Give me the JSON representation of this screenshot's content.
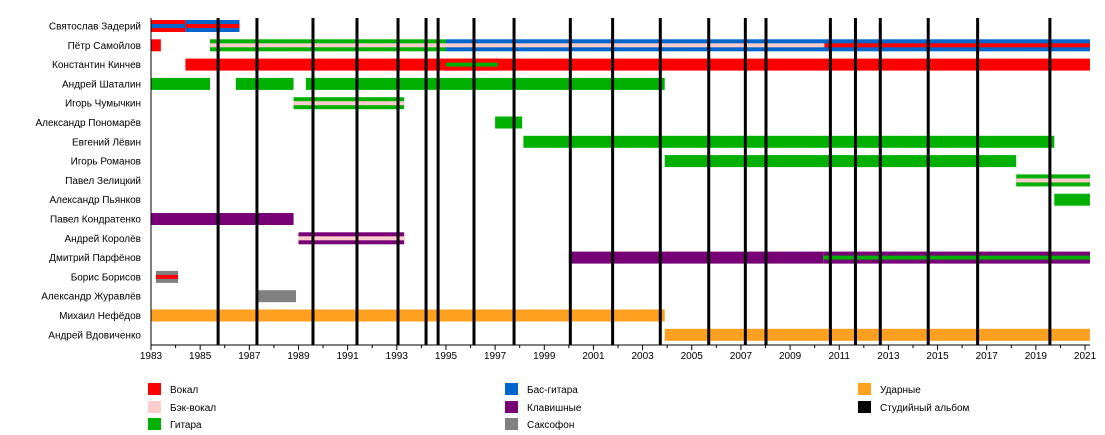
{
  "chart_data": {
    "type": "timeline",
    "title": "",
    "xlabel": "",
    "ylabel": "",
    "xlim": [
      1983,
      2021.2
    ],
    "x_tick_labels": [
      "1983",
      "1985",
      "1987",
      "1989",
      "1991",
      "1993",
      "1995",
      "1997",
      "1999",
      "2001",
      "2003",
      "2005",
      "2007",
      "2009",
      "2011",
      "2013",
      "2015",
      "2017",
      "2019",
      "2021"
    ],
    "grid": false,
    "legend_position": "bottom",
    "roles": {
      "vocal": {
        "label": "Вокал",
        "color": "#ff0000"
      },
      "backing": {
        "label": "Бэк-вокал",
        "color": "#ffcccc"
      },
      "guitar": {
        "label": "Гитара",
        "color": "#00b000"
      },
      "bass": {
        "label": "Бас-гитара",
        "color": "#0066cc"
      },
      "keys": {
        "label": "Клавишные",
        "color": "#770077"
      },
      "sax": {
        "label": "Саксофон",
        "color": "#808080"
      },
      "drums": {
        "label": "Ударные",
        "color": "#ffa020"
      },
      "album": {
        "label": "Студийный альбом",
        "color": "#000000"
      }
    },
    "legend_order": [
      [
        "vocal",
        "backing",
        "guitar"
      ],
      [
        "bass",
        "keys",
        "sax"
      ],
      [
        "drums",
        "album"
      ]
    ],
    "albums": [
      1985.73,
      1987.31,
      1989.59,
      1991.38,
      1993.05,
      1994.19,
      1994.68,
      1996.14,
      1997.77,
      2000.06,
      2001.78,
      2003.72,
      2005.69,
      2007.18,
      2008.02,
      2010.64,
      2011.66,
      2012.67,
      2014.62,
      2016.63,
      2019.57
    ],
    "members": [
      {
        "name": "Святослав Задерий",
        "spans": [
          {
            "from": 1983,
            "to": 1984.4,
            "role": "vocal",
            "inner": "bass"
          },
          {
            "from": 1984.4,
            "to": 1986.6,
            "role": "bass",
            "inner": "vocal"
          }
        ]
      },
      {
        "name": "Пётр Самойлов",
        "spans": [
          {
            "from": 1983,
            "to": 1983.4,
            "role": "vocal"
          },
          {
            "from": 1985.4,
            "to": 1995.0,
            "role": "guitar",
            "inner": "backing"
          },
          {
            "from": 1995.0,
            "to": 2010.4,
            "role": "bass",
            "inner": "backing"
          },
          {
            "from": 2010.4,
            "to": 2021.2,
            "role": "bass",
            "inner": "vocal"
          }
        ]
      },
      {
        "name": "Константин Кинчев",
        "spans": [
          {
            "from": 1984.4,
            "to": 2021.2,
            "role": "vocal"
          },
          {
            "from": 1995.0,
            "to": 1997.1,
            "role": "vocal",
            "inner": "guitar"
          }
        ]
      },
      {
        "name": "Андрей Шаталин",
        "spans": [
          {
            "from": 1983,
            "to": 1985.4,
            "role": "guitar"
          },
          {
            "from": 1986.45,
            "to": 1988.8,
            "role": "guitar"
          },
          {
            "from": 1989.3,
            "to": 2003.9,
            "role": "guitar"
          }
        ]
      },
      {
        "name": "Игорь Чумычкин",
        "spans": [
          {
            "from": 1988.8,
            "to": 1993.3,
            "role": "guitar",
            "inner": "backing"
          }
        ]
      },
      {
        "name": "Александр Пономарёв",
        "spans": [
          {
            "from": 1997.0,
            "to": 1998.1,
            "role": "guitar"
          }
        ]
      },
      {
        "name": "Евгений Лёвин",
        "spans": [
          {
            "from": 1998.15,
            "to": 2019.75,
            "role": "guitar"
          }
        ]
      },
      {
        "name": "Игорь Романов",
        "spans": [
          {
            "from": 2003.9,
            "to": 2018.2,
            "role": "guitar"
          }
        ]
      },
      {
        "name": "Павел Зелицкий",
        "spans": [
          {
            "from": 2018.2,
            "to": 2021.2,
            "role": "guitar",
            "inner": "backing"
          }
        ]
      },
      {
        "name": "Александр Пьянков",
        "spans": [
          {
            "from": 2019.75,
            "to": 2021.2,
            "role": "guitar"
          }
        ]
      },
      {
        "name": "Павел Кондратенко",
        "spans": [
          {
            "from": 1983,
            "to": 1988.8,
            "role": "keys"
          }
        ]
      },
      {
        "name": "Андрей Королёв",
        "spans": [
          {
            "from": 1989.0,
            "to": 1993.3,
            "role": "keys",
            "inner": "backing"
          }
        ]
      },
      {
        "name": "Дмитрий Парфёнов",
        "spans": [
          {
            "from": 2000.0,
            "to": 2010.35,
            "role": "keys"
          },
          {
            "from": 2010.35,
            "to": 2021.2,
            "role": "keys",
            "inner": "guitar"
          }
        ]
      },
      {
        "name": "Борис Борисов",
        "spans": [
          {
            "from": 1983.2,
            "to": 1984.1,
            "role": "sax",
            "inner": "vocal"
          }
        ]
      },
      {
        "name": "Александр Журавлёв",
        "spans": [
          {
            "from": 1987.35,
            "to": 1988.9,
            "role": "sax"
          }
        ]
      },
      {
        "name": "Михаил Нефёдов",
        "spans": [
          {
            "from": 1983,
            "to": 2003.9,
            "role": "drums"
          }
        ]
      },
      {
        "name": "Андрей Вдовиченко",
        "spans": [
          {
            "from": 2003.9,
            "to": 2021.2,
            "role": "drums"
          }
        ]
      }
    ]
  }
}
